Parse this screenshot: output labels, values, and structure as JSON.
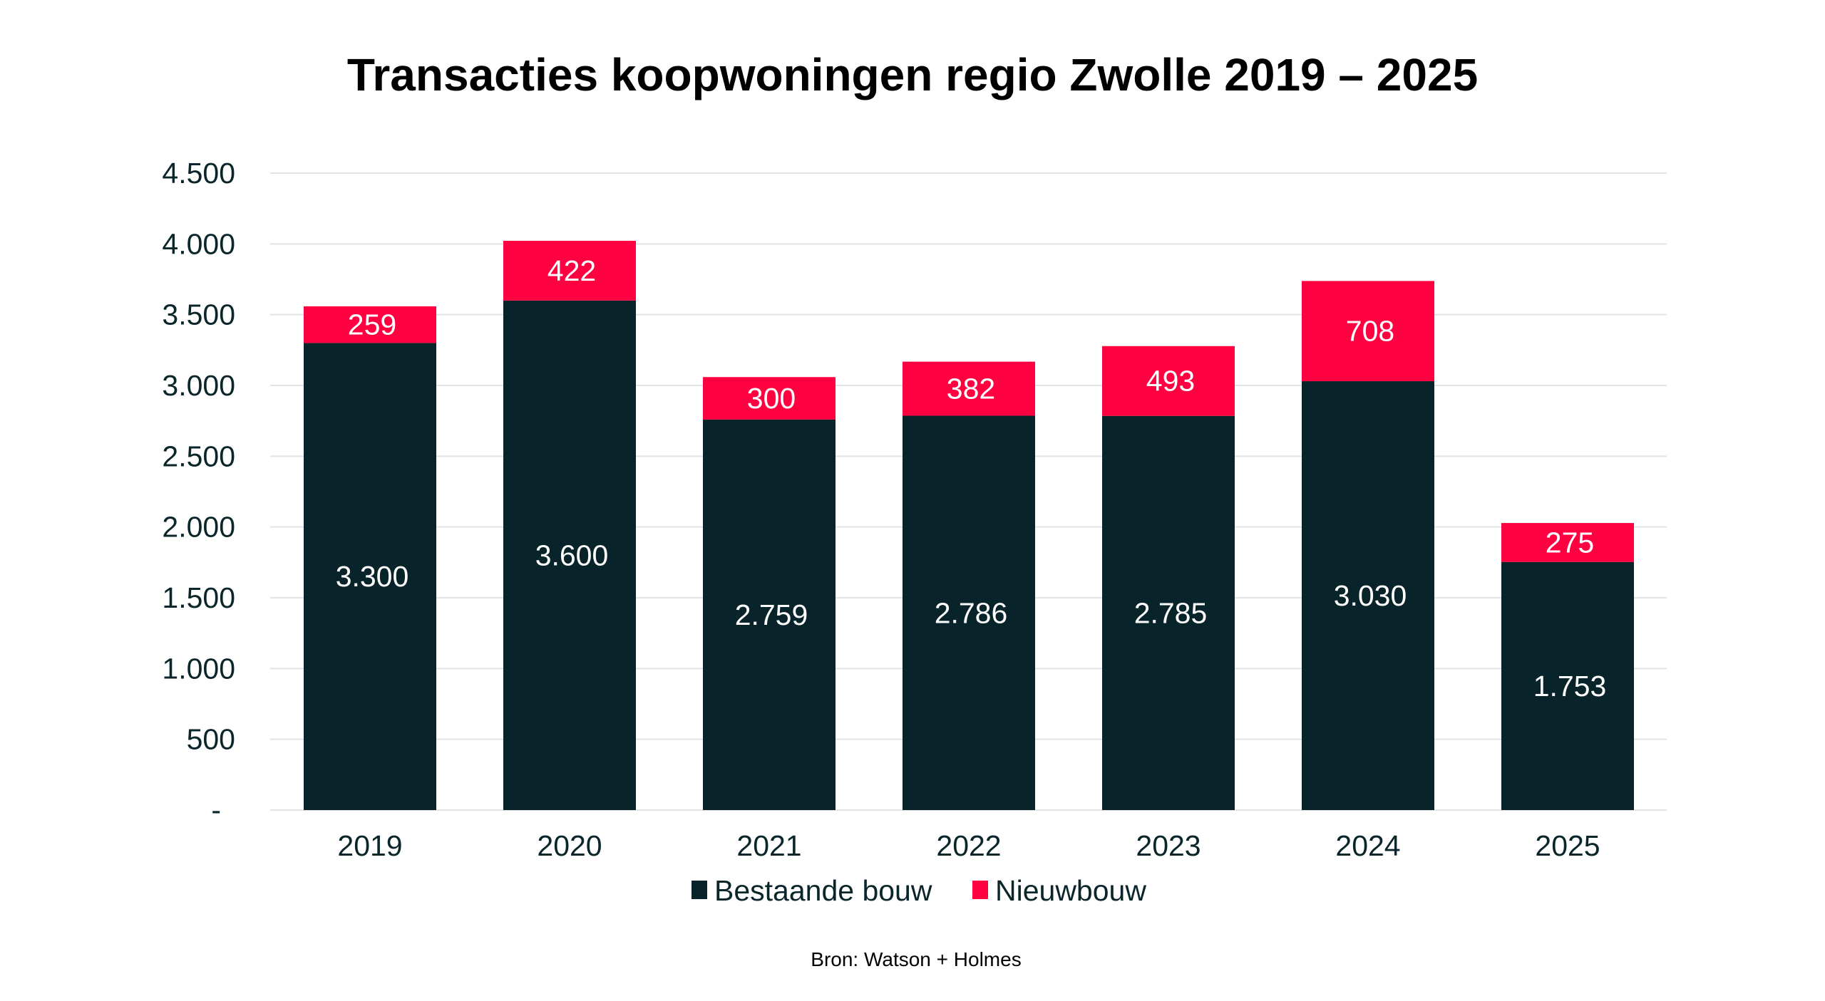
{
  "chart_data": {
    "type": "bar",
    "stacked": true,
    "title": "Transacties koopwoningen regio Zwolle 2019 – 2025",
    "xlabel": "",
    "ylabel": "",
    "categories": [
      "2019",
      "2020",
      "2021",
      "2022",
      "2023",
      "2024",
      "2025"
    ],
    "series": [
      {
        "name": "Bestaande bouw",
        "color": "#08242a",
        "values": [
          3300,
          3600,
          2759,
          2786,
          2785,
          3030,
          1753
        ],
        "labels": [
          "3.300",
          "3.600",
          "2.759",
          "2.786",
          "2.785",
          "3.030",
          "1.753"
        ]
      },
      {
        "name": "Nieuwbouw",
        "color": "#ff0040",
        "values": [
          259,
          422,
          300,
          382,
          493,
          708,
          275
        ],
        "labels": [
          "259",
          "422",
          "300",
          "382",
          "493",
          "708",
          "275"
        ]
      }
    ],
    "ylim": [
      0,
      4500
    ],
    "yticks": [
      0,
      500,
      1000,
      1500,
      2000,
      2500,
      3000,
      3500,
      4000,
      4500
    ],
    "ytick_labels": [
      "-",
      "500",
      "1.000",
      "1.500",
      "2.000",
      "2.500",
      "3.000",
      "3.500",
      "4.000",
      "4.500"
    ],
    "grid": true,
    "legend_position": "bottom-center",
    "data_labels": "centered-inside",
    "source": "Bron: Watson + Holmes"
  }
}
